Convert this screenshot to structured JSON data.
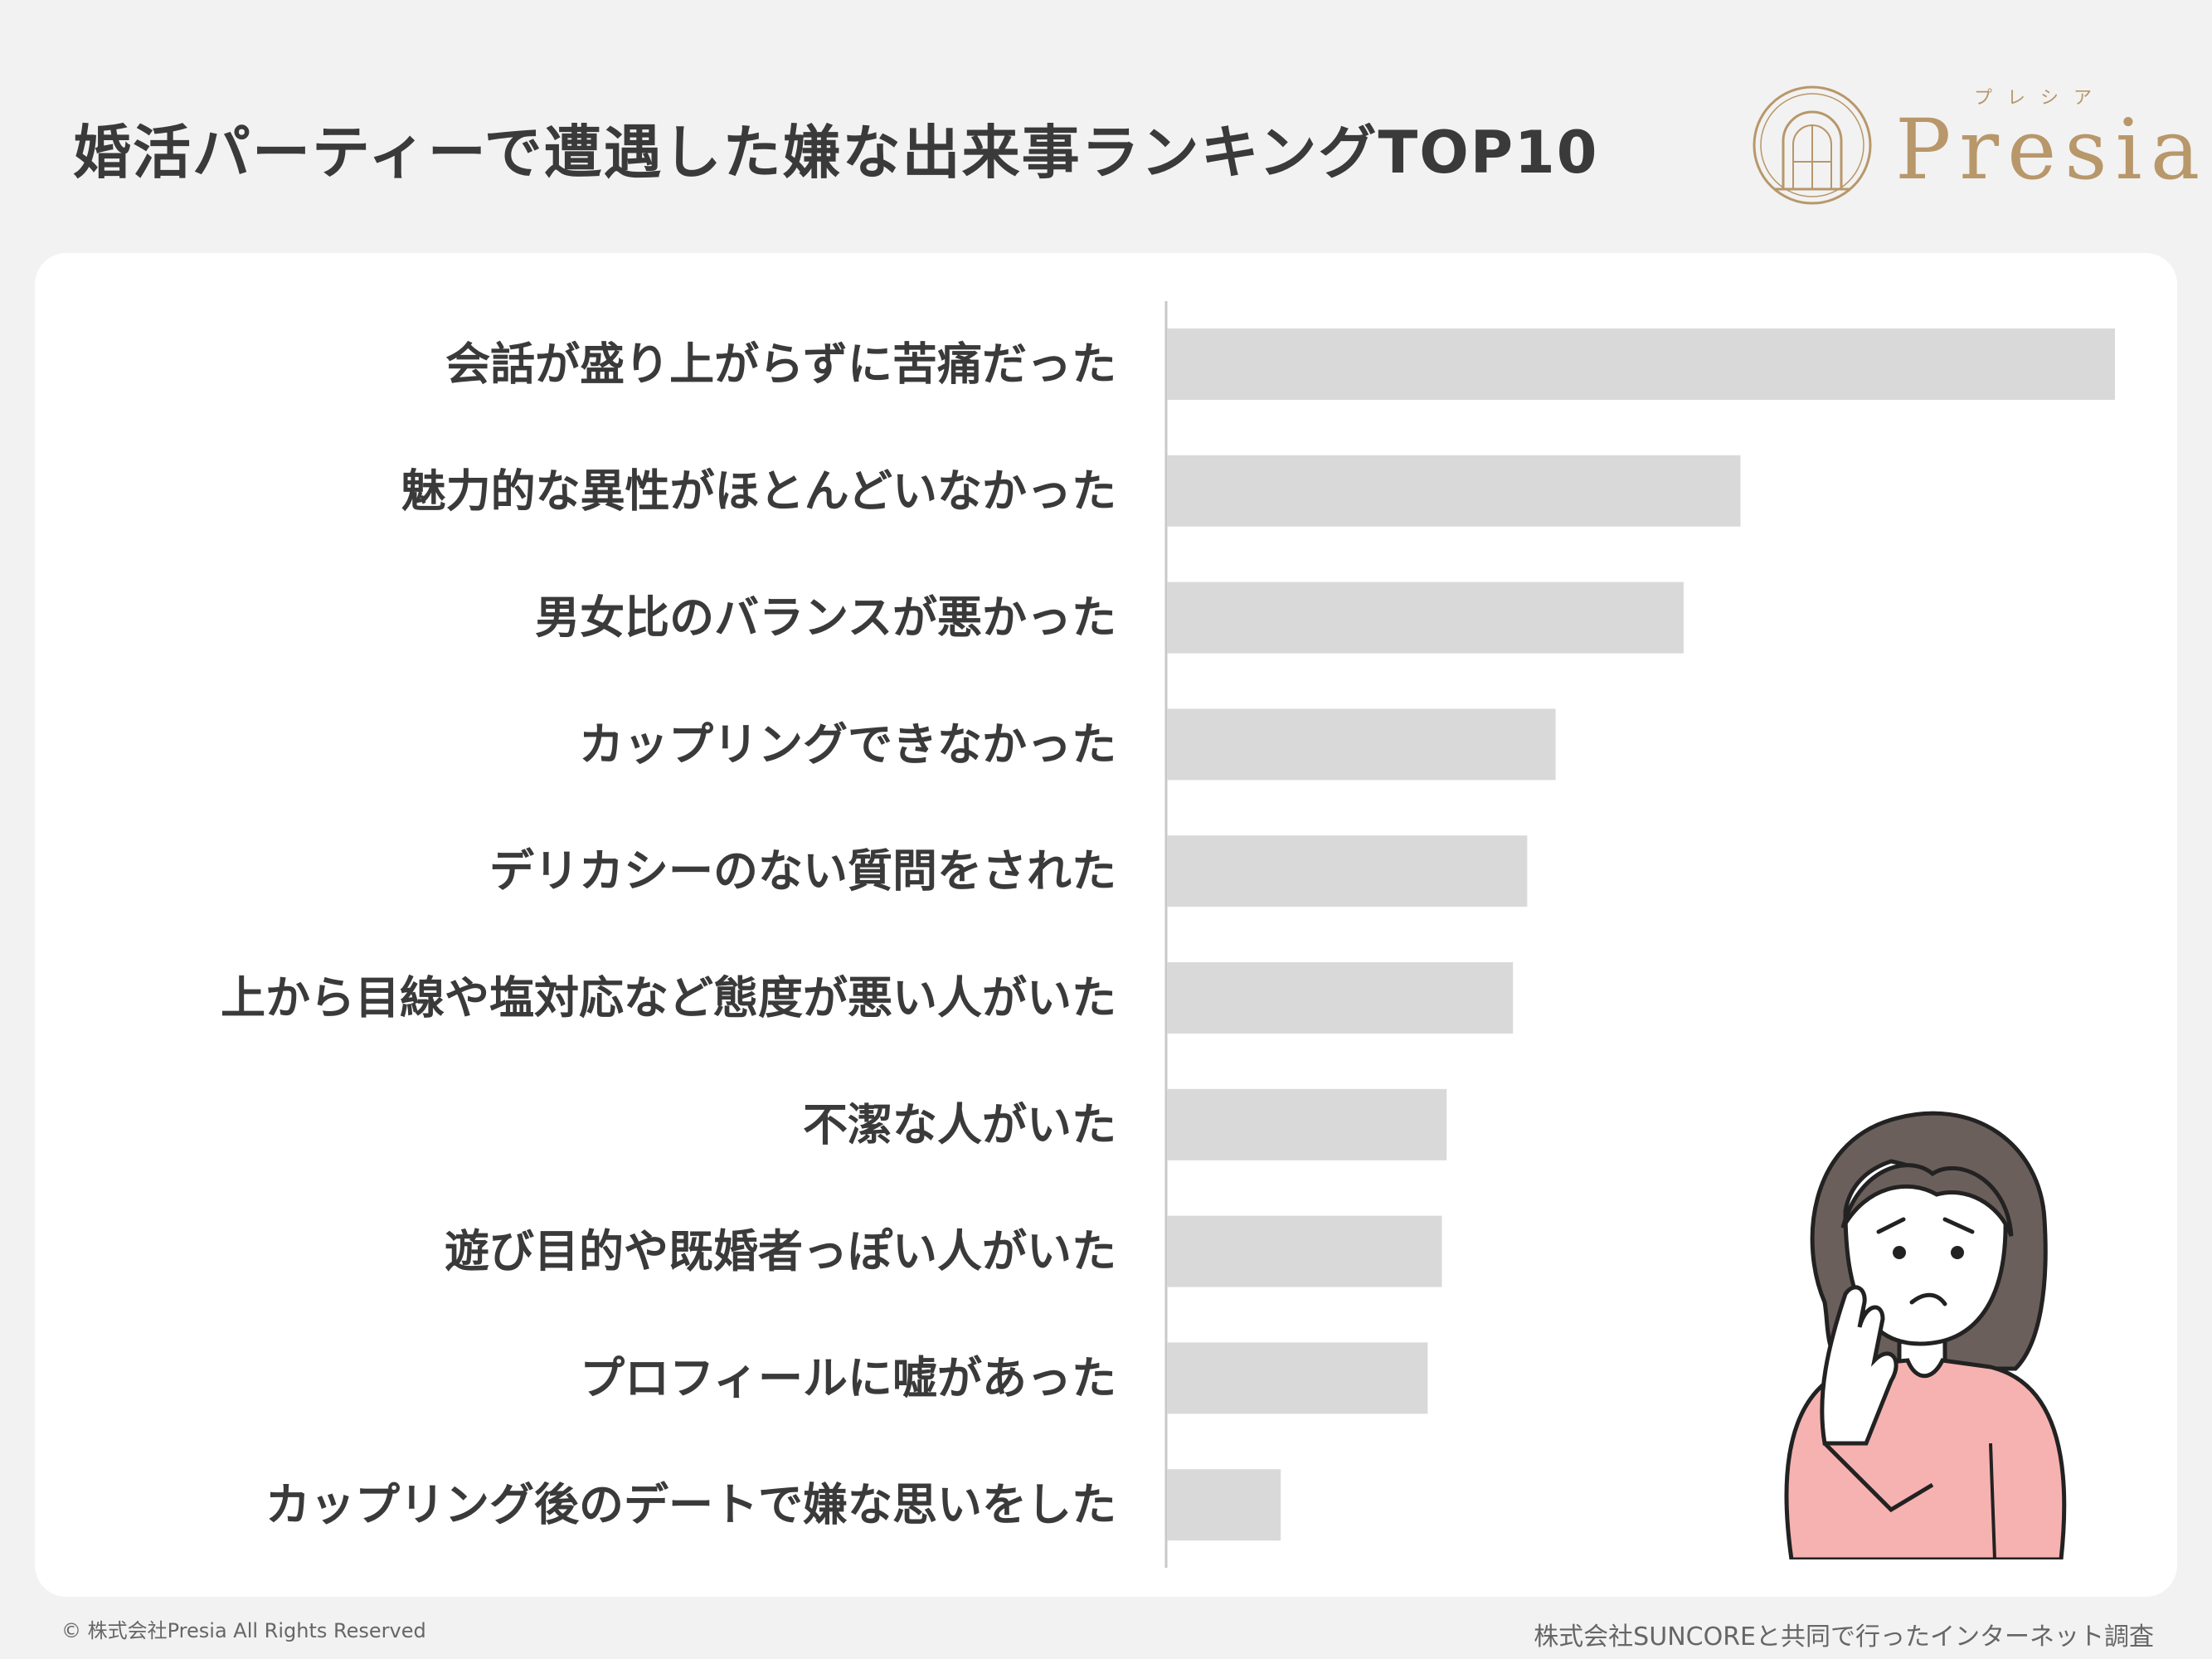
{
  "title": "婚活パーティーで遭遇した嫌な出来事ランキングTOP10",
  "logo": {
    "ruby": "プレシア",
    "text": "Presia",
    "color": "#b8976a"
  },
  "chart_data": {
    "type": "bar",
    "orientation": "horizontal",
    "title": "婚活パーティーで遭遇した嫌な出来事ランキングTOP10",
    "categories": [
      "会話が盛り上がらずに苦痛だった",
      "魅力的な異性がほとんどいなかった",
      "男女比のバランスが悪かった",
      "カップリングできなかった",
      "デリカシーのない質問をされた",
      "上から目線や塩対応など態度が悪い人がいた",
      "不潔な人がいた",
      "遊び目的や既婚者っぽい人がいた",
      "プロフィールに嘘があった",
      "カップリング後のデートで嫌な思いをした"
    ],
    "values": [
      100,
      60.5,
      54.5,
      41,
      38,
      36.5,
      29.5,
      29,
      27.5,
      12
    ],
    "value_unit": "relative (longest bar = 100; no axis printed)",
    "xlim": [
      0,
      100
    ],
    "bar_color": "#d9d9d9",
    "axis_line_color": "#c8c8c8",
    "grid": false,
    "legend": "none"
  },
  "footer": {
    "copyright": "© 株式会社Presia All Rights Reserved",
    "source": "株式会社SUNCOREと共同で行ったインターネット調査"
  },
  "illustration": {
    "icon": "worried-woman-illustration",
    "sweater_color": "#f6b2b0",
    "hair_color": "#6b5f5c"
  }
}
